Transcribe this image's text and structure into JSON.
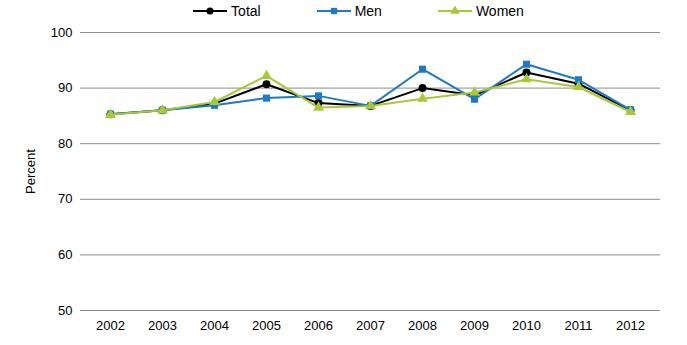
{
  "chart_data": {
    "type": "line",
    "y_label": "Percent",
    "categories": [
      "2002",
      "2003",
      "2004",
      "2005",
      "2006",
      "2007",
      "2008",
      "2009",
      "2010",
      "2011",
      "2012"
    ],
    "series": [
      {
        "name": "Total",
        "color": "#000000",
        "marker": "circle",
        "values": [
          85.3,
          86.0,
          87.2,
          90.7,
          87.3,
          86.8,
          90.0,
          88.7,
          92.8,
          90.8,
          86.0
        ]
      },
      {
        "name": "Men",
        "color": "#1f78c8",
        "marker": "square",
        "values": [
          85.3,
          86.0,
          86.9,
          88.2,
          88.6,
          86.8,
          93.4,
          88.0,
          94.3,
          91.5,
          86.1
        ]
      },
      {
        "name": "Women",
        "color": "#a8c83a",
        "marker": "triangle",
        "values": [
          85.2,
          86.0,
          87.5,
          92.2,
          86.5,
          86.8,
          88.1,
          89.2,
          91.6,
          90.2,
          85.7
        ]
      }
    ],
    "ylim": [
      50,
      100
    ],
    "yticks": [
      50,
      60,
      70,
      80,
      90,
      100
    ],
    "grid": true,
    "legend": "top"
  }
}
